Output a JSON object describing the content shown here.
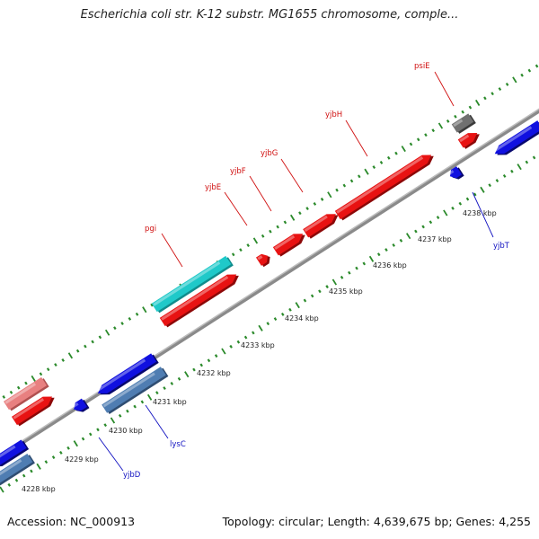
{
  "title": "Escherichia coli str. K-12 substr. MG1655 chromosome, comple...",
  "footer": {
    "accession": "Accession: NC_000913",
    "summary": "Topology: circular; Length: 4,639,675 bp; Genes: 4,255"
  },
  "colors": {
    "backbone": "#8a8a8a",
    "tick": "#2b8a2b",
    "forward_gene": "#e81212",
    "forward_gene_light": "#e88080",
    "reverse_gene": "#1010e0",
    "reverse_gene_steel": "#4f7db2",
    "rrna_cyan": "#1fc9c9",
    "other_grey": "#666666",
    "label_red": "#d01010",
    "label_blue": "#1010c0"
  },
  "scale_labels": [
    "4228 kbp",
    "4229 kbp",
    "4230 kbp",
    "4231 kbp",
    "4232 kbp",
    "4233 kbp",
    "4234 kbp",
    "4235 kbp",
    "4236 kbp",
    "4237 kbp",
    "4238 kbp"
  ],
  "gene_labels": [
    {
      "name": "psiE",
      "strand": "forward"
    },
    {
      "name": "yjbH",
      "strand": "forward"
    },
    {
      "name": "yjbG",
      "strand": "forward"
    },
    {
      "name": "yjbF",
      "strand": "forward"
    },
    {
      "name": "yjbE",
      "strand": "forward"
    },
    {
      "name": "pgi",
      "strand": "forward"
    },
    {
      "name": "yjbT",
      "strand": "reverse"
    },
    {
      "name": "lysC",
      "strand": "reverse"
    },
    {
      "name": "yjbD",
      "strand": "reverse"
    }
  ]
}
